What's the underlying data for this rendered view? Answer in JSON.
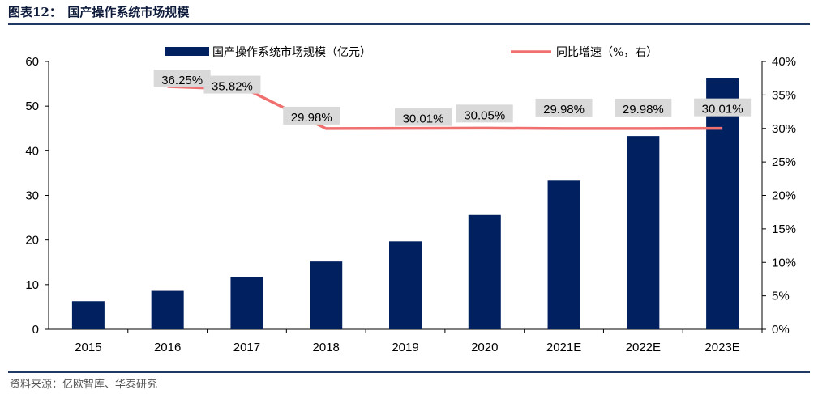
{
  "header": {
    "title": "图表12：　国产操作系统市场规模"
  },
  "footer": {
    "source": "资料来源：亿欧智库、华泰研究"
  },
  "colors": {
    "bar": "#002060",
    "line": "#f07070",
    "label_bg": "#d9d9d9",
    "rule": "#1f3864"
  },
  "chart_data": {
    "type": "bar",
    "categories": [
      "2015",
      "2016",
      "2017",
      "2018",
      "2019",
      "2020",
      "2021E",
      "2022E",
      "2023E"
    ],
    "series": [
      {
        "name": "国产操作系统市场规模（亿元）",
        "type": "bar",
        "axis": "left",
        "values": [
          6.3,
          8.6,
          11.7,
          15.2,
          19.7,
          25.6,
          33.3,
          43.3,
          56.2
        ]
      },
      {
        "name": "同比增速（%，右）",
        "type": "line",
        "axis": "right",
        "values": [
          null,
          36.25,
          35.82,
          29.98,
          30.01,
          30.05,
          29.98,
          29.98,
          30.01
        ],
        "labels": [
          "",
          "36.25%",
          "35.82%",
          "29.98%",
          "30.01%",
          "30.05%",
          "29.98%",
          "29.98%",
          "30.01%"
        ]
      }
    ],
    "y_left": {
      "min": 0,
      "max": 60,
      "step": 10,
      "ticks": [
        "0",
        "10",
        "20",
        "30",
        "40",
        "50",
        "60"
      ]
    },
    "y_right": {
      "min": 0,
      "max": 40,
      "step": 5,
      "ticks": [
        "0%",
        "5%",
        "10%",
        "15%",
        "20%",
        "25%",
        "30%",
        "35%",
        "40%"
      ]
    },
    "legend": "top-center",
    "grid": false
  }
}
